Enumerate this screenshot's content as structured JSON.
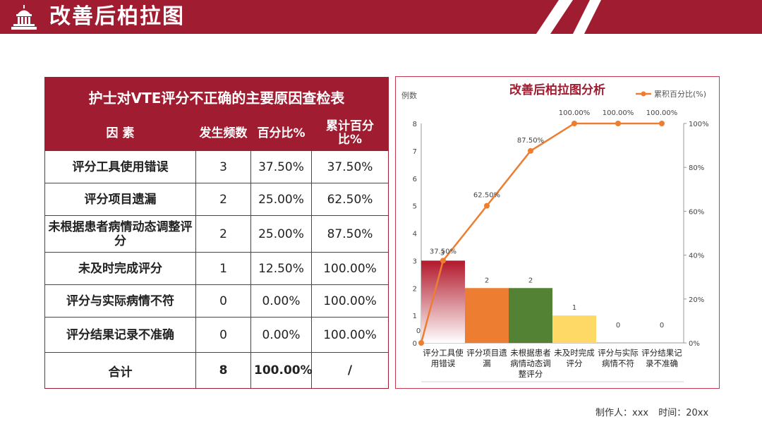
{
  "header": {
    "title": "改善后柏拉图",
    "icon": "capitol-building-icon",
    "color": "#a01c30"
  },
  "table": {
    "caption": "护士对VTE评分不正确的主要原因查检表",
    "columns": [
      "因 素",
      "发生频数",
      "百分比%",
      "累计百分比%"
    ],
    "rows": [
      {
        "factor": "评分工具使用错误",
        "count": "3",
        "pct": "37.50%",
        "cum": "37.50%"
      },
      {
        "factor": "评分项目遗漏",
        "count": "2",
        "pct": "25.00%",
        "cum": "62.50%"
      },
      {
        "factor": "未根据患者病情动态调整评分",
        "count": "2",
        "pct": "25.00%",
        "cum": "87.50%"
      },
      {
        "factor": "未及时完成评分",
        "count": "1",
        "pct": "12.50%",
        "cum": "100.00%"
      },
      {
        "factor": "评分与实际病情不符",
        "count": "0",
        "pct": "0.00%",
        "cum": "100.00%"
      },
      {
        "factor": "评分结果记录不准确",
        "count": "0",
        "pct": "0.00%",
        "cum": "100.00%"
      }
    ],
    "total": {
      "label": "合计",
      "count": "8",
      "pct": "100.00%",
      "cum": "/"
    }
  },
  "chart_data": {
    "type": "bar",
    "title": "改善后柏拉图分析",
    "ylabel": "例数",
    "y2label": "",
    "ylim": [
      0,
      8
    ],
    "y2lim": [
      0,
      100
    ],
    "yticks": [
      "0",
      "1",
      "2",
      "3",
      "4",
      "5",
      "6",
      "7",
      "8"
    ],
    "y2ticks": [
      "0%",
      "20%",
      "40%",
      "60%",
      "80%",
      "100%"
    ],
    "categories": [
      "评分工具使用错误",
      "评分项目遗漏",
      "未根据患者病情动态调整评分",
      "未及时完成评分",
      "评分与实际病情不符",
      "评分结果记录不准确"
    ],
    "category_labels": [
      [
        "评分工具使",
        "用错误"
      ],
      [
        "评分项目遗",
        "漏"
      ],
      [
        "未根据患者",
        "病情动态调",
        "整评分"
      ],
      [
        "未及时完成",
        "评分"
      ],
      [
        "评分与实际",
        "病情不符"
      ],
      [
        "评分结果记",
        "录不准确"
      ]
    ],
    "values": [
      3,
      2,
      2,
      1,
      0,
      0
    ],
    "value_labels": [
      "3",
      "2",
      "2",
      "1",
      "0",
      "0"
    ],
    "bar_colors": [
      "#b2182b",
      "#ed7d31",
      "#548235",
      "#ffd966",
      "#bfbfbf",
      "#bfbfbf"
    ],
    "line": {
      "name": "累积百分比(%)",
      "color": "#ed7d31",
      "x_positions": [
        "origin",
        "0.5",
        "1.5",
        "2.5",
        "3.5",
        "4.5",
        "5.5"
      ],
      "values": [
        0,
        37.5,
        62.5,
        87.5,
        100,
        100,
        100
      ],
      "labels": [
        "0",
        "37.50%",
        "62.50%",
        "87.50%",
        "100.00%",
        "100.00%",
        "100.00%"
      ]
    },
    "legend": "top-right"
  },
  "footer": {
    "maker": "制作人：xxx",
    "time": "时间：20xx"
  }
}
